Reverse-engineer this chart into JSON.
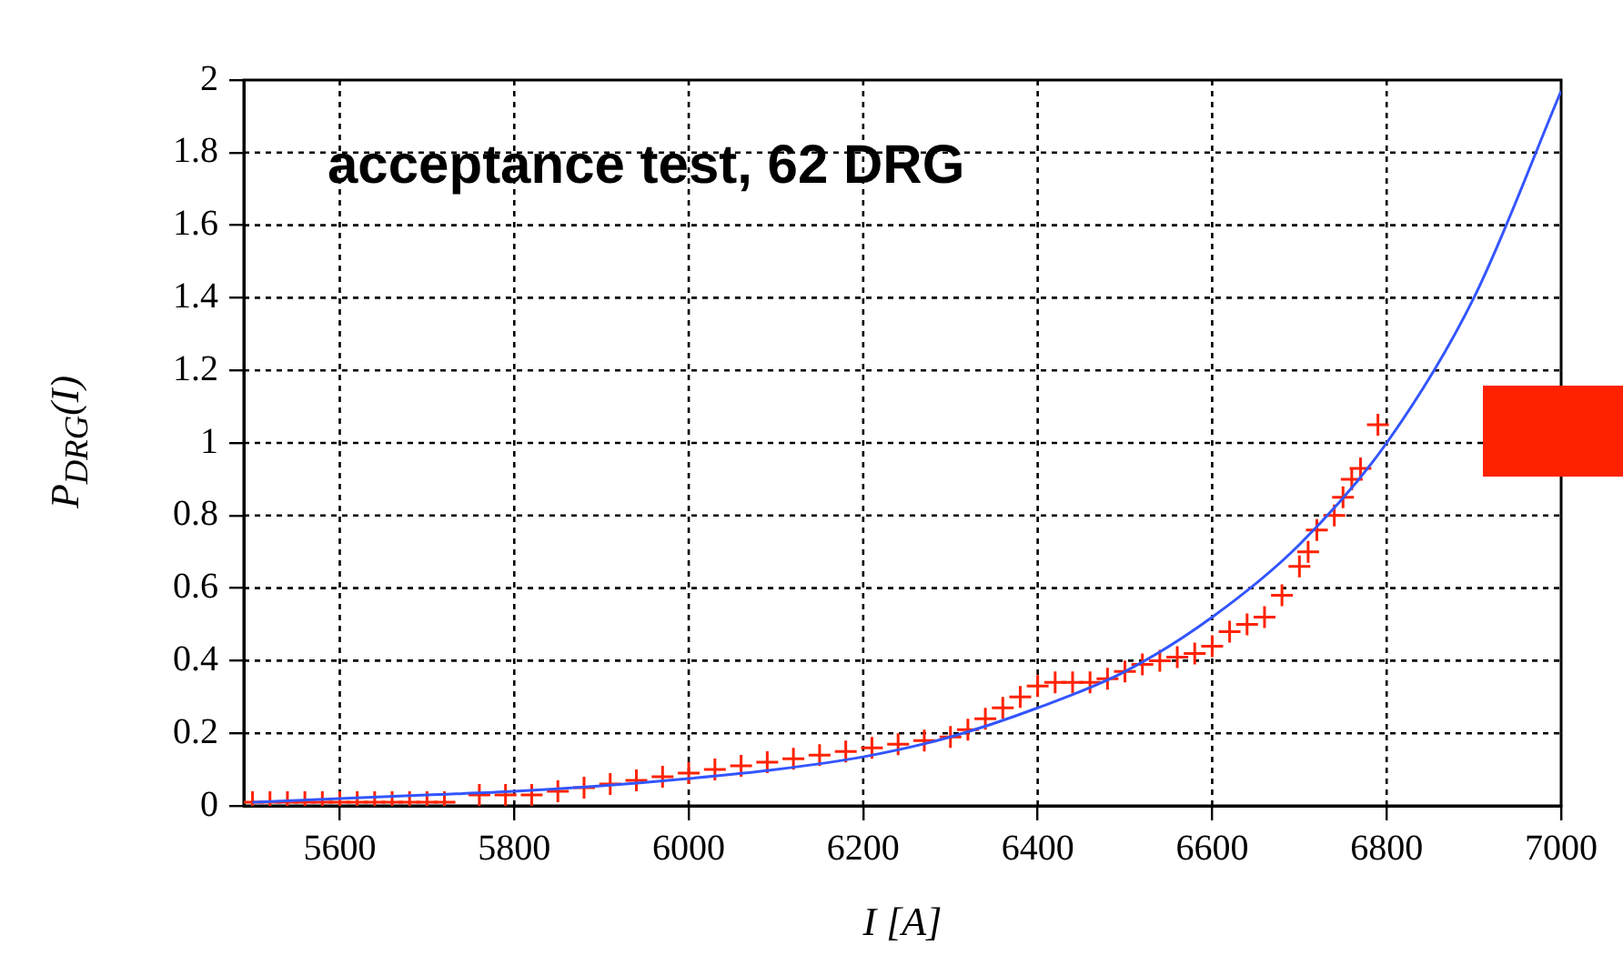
{
  "chart_data": {
    "type": "scatter",
    "title": "acceptance test, 62 DRG",
    "xlabel": "I [A]",
    "ylabel": "P$_{DRG}$(I)",
    "xlim": [
      5490,
      7000
    ],
    "xticks": [
      5600,
      5800,
      6000,
      6200,
      6400,
      6600,
      6800,
      7000
    ],
    "ylim": [
      0,
      2
    ],
    "yticks": [
      0,
      0.2,
      0.4,
      0.6,
      0.8,
      1,
      1.2,
      1.4,
      1.6,
      1.8,
      2
    ],
    "grid": true,
    "legend": false,
    "series": [
      {
        "marker": "cross",
        "color": "#ff2200",
        "x": [
          5500,
          5520,
          5540,
          5560,
          5580,
          5600,
          5620,
          5640,
          5660,
          5680,
          5700,
          5720,
          5760,
          5790,
          5820,
          5850,
          5880,
          5910,
          5940,
          5970,
          6000,
          6030,
          6060,
          6090,
          6120,
          6150,
          6180,
          6210,
          6240,
          6270,
          6300,
          6320,
          6340,
          6360,
          6380,
          6400,
          6420,
          6440,
          6460,
          6480,
          6500,
          6520,
          6540,
          6560,
          6580,
          6600,
          6620,
          6640,
          6660,
          6680,
          6700,
          6710,
          6720,
          6740,
          6750,
          6760,
          6770,
          6790
        ],
        "values": [
          0.01,
          0.01,
          0.01,
          0.01,
          0.01,
          0.01,
          0.01,
          0.01,
          0.01,
          0.01,
          0.01,
          0.01,
          0.03,
          0.03,
          0.03,
          0.04,
          0.05,
          0.06,
          0.07,
          0.08,
          0.09,
          0.1,
          0.11,
          0.12,
          0.13,
          0.14,
          0.15,
          0.16,
          0.17,
          0.18,
          0.19,
          0.21,
          0.24,
          0.27,
          0.3,
          0.33,
          0.34,
          0.34,
          0.34,
          0.35,
          0.37,
          0.39,
          0.4,
          0.41,
          0.42,
          0.44,
          0.48,
          0.5,
          0.52,
          0.58,
          0.66,
          0.7,
          0.76,
          0.8,
          0.85,
          0.9,
          0.93,
          1.05
        ]
      },
      {
        "type": "line",
        "marker": "none",
        "line_style": "solid",
        "color": "#3355ff",
        "x": [
          5500,
          5600,
          5700,
          5800,
          5900,
          6000,
          6100,
          6200,
          6300,
          6400,
          6500,
          6600,
          6700,
          6800,
          6900,
          7000
        ],
        "values": [
          0.01,
          0.02,
          0.03,
          0.04,
          0.055,
          0.075,
          0.1,
          0.135,
          0.19,
          0.27,
          0.37,
          0.52,
          0.72,
          1.0,
          1.4,
          1.97
        ]
      }
    ]
  }
}
